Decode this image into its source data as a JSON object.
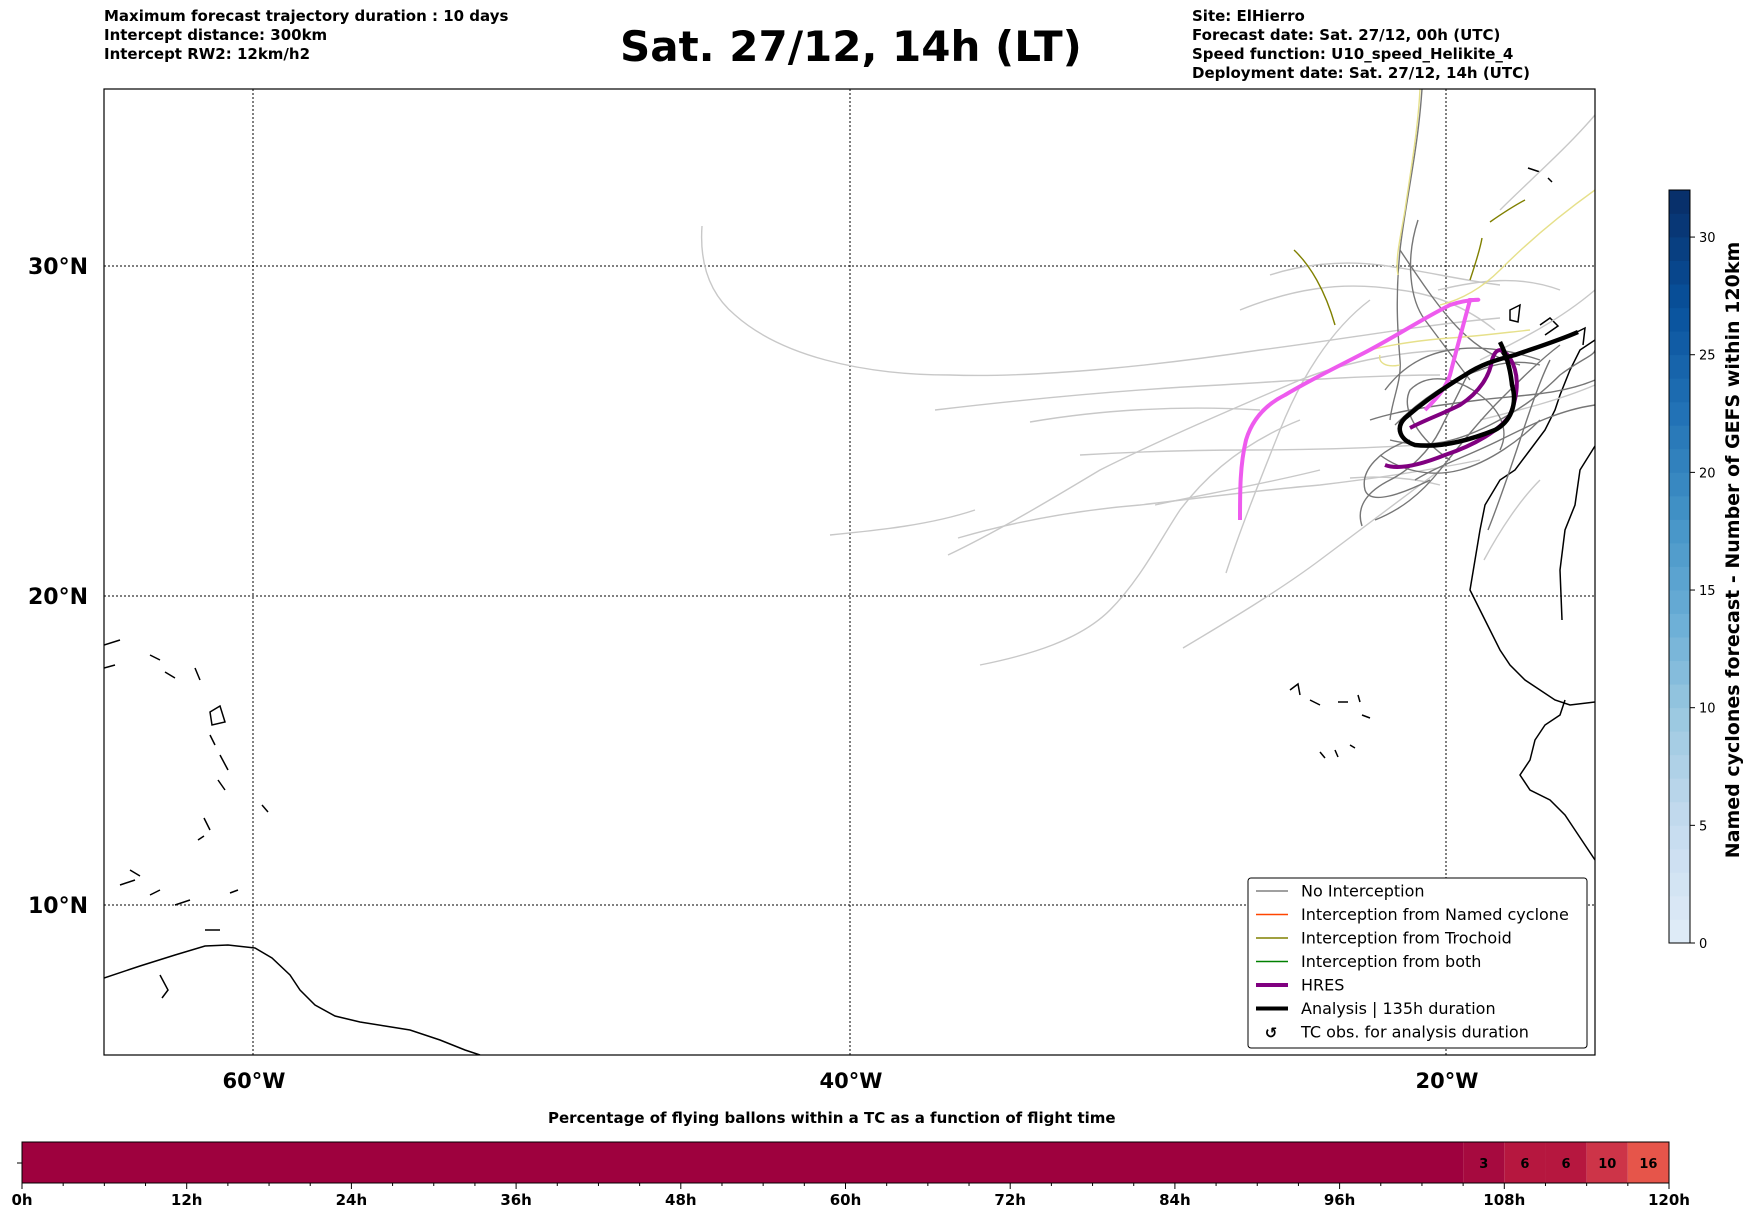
{
  "header_left": [
    "Maximum forecast trajectory duration : 10 days",
    "Intercept distance: 300km",
    "Intercept RW2: 12km/h2"
  ],
  "title": "Sat. 27/12, 14h (LT)",
  "header_right": [
    "Site: ElHierro",
    "Forecast date: Sat. 27/12, 00h (UTC)",
    "Speed function: U10_speed_Helikite_4",
    "Deployment date: Sat. 27/12, 14h (UTC)"
  ],
  "map": {
    "lat_labels": [
      "30°N",
      "20°N",
      "10°N"
    ],
    "lon_labels": [
      "60°W",
      "40°W",
      "20°W"
    ],
    "extent_lon": [
      -65,
      -15
    ],
    "extent_lat": [
      5.5,
      34.8
    ]
  },
  "legend": {
    "items": [
      {
        "label": "No Interception",
        "color": "#808080",
        "style": "thin"
      },
      {
        "label": "Interception from Named cyclone",
        "color": "#ff4500",
        "style": "thin"
      },
      {
        "label": "Interception from Trochoid",
        "color": "#808000",
        "style": "thin"
      },
      {
        "label": "Interception from both",
        "color": "#008000",
        "style": "thin"
      },
      {
        "label": "HRES",
        "color": "#800080",
        "style": "thick"
      },
      {
        "label": "Analysis | 135h duration",
        "color": "#000000",
        "style": "thick"
      },
      {
        "label": "TC obs. for analysis duration",
        "color": "#000000",
        "style": "symbol"
      }
    ]
  },
  "colorbar": {
    "label": "Named cyclones forecast - Number of GEFS within 120km",
    "ticks": [
      "0",
      "5",
      "10",
      "15",
      "20",
      "25",
      "30"
    ],
    "min": 0,
    "max": 32
  },
  "flight_bar": {
    "title": "Percentage of flying ballons within a TC as a function of flight time",
    "tick_labels": [
      "0h",
      "12h",
      "24h",
      "36h",
      "48h",
      "60h",
      "72h",
      "84h",
      "96h",
      "108h",
      "120h"
    ],
    "max_hours": 120,
    "segments": [
      {
        "start_h": 0,
        "end_h": 105,
        "value": "",
        "color": "#9e013e"
      },
      {
        "start_h": 105,
        "end_h": 108,
        "value": "3",
        "color": "#a60a3f"
      },
      {
        "start_h": 108,
        "end_h": 111,
        "value": "6",
        "color": "#b6173f"
      },
      {
        "start_h": 111,
        "end_h": 114,
        "value": "6",
        "color": "#b6173f"
      },
      {
        "start_h": 114,
        "end_h": 117,
        "value": "10",
        "color": "#cd3448"
      },
      {
        "start_h": 117,
        "end_h": 120,
        "value": "16",
        "color": "#e6554a"
      }
    ]
  }
}
